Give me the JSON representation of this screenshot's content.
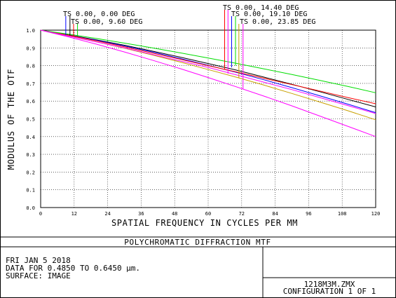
{
  "chart_data": {
    "type": "line",
    "title": "POLYCHROMATIC DIFFRACTION MTF",
    "xlabel": "SPATIAL FREQUENCY IN CYCLES PER MM",
    "ylabel": "MODULUS OF THE OTF",
    "xlim": [
      0,
      120
    ],
    "ylim": [
      0,
      1.0
    ],
    "xticks": [
      "0",
      "12",
      "24",
      "36",
      "48",
      "60",
      "72",
      "84",
      "96",
      "108",
      "120"
    ],
    "yticks": [
      "0.0",
      "0.1",
      "0.2",
      "0.3",
      "0.4",
      "0.5",
      "0.6",
      "0.7",
      "0.8",
      "0.9",
      "1.0"
    ],
    "grid": true,
    "legend": [
      "TS 0.00, 0.00 DEG",
      "TS 0.00, 9.60 DEG",
      "TS 0.00, 14.40 DEG",
      "TS 0.00, 19.10 DEG",
      "TS 0.00, 23.85 DEG"
    ],
    "series": [
      {
        "color": "#000000",
        "x": [
          0,
          10,
          20,
          30,
          40,
          50,
          60,
          70,
          80,
          90,
          100,
          110,
          120
        ],
        "y": [
          1.0,
          0.973,
          0.945,
          0.915,
          0.882,
          0.848,
          0.812,
          0.775,
          0.735,
          0.695,
          0.653,
          0.61,
          0.567
        ]
      },
      {
        "color": "#0000ff",
        "x": [
          0,
          10,
          20,
          30,
          40,
          50,
          60,
          70,
          80,
          90,
          100,
          110,
          120
        ],
        "y": [
          1.0,
          0.972,
          0.943,
          0.911,
          0.877,
          0.84,
          0.802,
          0.762,
          0.72,
          0.676,
          0.63,
          0.583,
          0.535
        ]
      },
      {
        "color": "#ff0000",
        "x": [
          0,
          10,
          20,
          30,
          40,
          50,
          60,
          70,
          80,
          90,
          100,
          110,
          120
        ],
        "y": [
          1.0,
          0.971,
          0.94,
          0.906,
          0.871,
          0.836,
          0.8,
          0.765,
          0.729,
          0.693,
          0.657,
          0.62,
          0.585
        ]
      },
      {
        "color": "#00dd00",
        "x": [
          0,
          10,
          20,
          30,
          40,
          50,
          60,
          70,
          80,
          90,
          100,
          110,
          120
        ],
        "y": [
          1.0,
          0.977,
          0.953,
          0.927,
          0.9,
          0.872,
          0.843,
          0.813,
          0.782,
          0.75,
          0.717,
          0.683,
          0.647
        ]
      },
      {
        "color": "#c8a000",
        "x": [
          0,
          10,
          20,
          30,
          40,
          50,
          60,
          70,
          80,
          90,
          100,
          110,
          120
        ],
        "y": [
          1.0,
          0.968,
          0.934,
          0.898,
          0.86,
          0.82,
          0.778,
          0.735,
          0.69,
          0.643,
          0.595,
          0.546,
          0.495
        ]
      },
      {
        "color": "#ff00ff",
        "x": [
          0,
          10,
          20,
          30,
          40,
          50,
          60,
          70,
          80,
          90,
          100,
          110,
          120
        ],
        "y": [
          1.0,
          0.962,
          0.921,
          0.877,
          0.831,
          0.783,
          0.733,
          0.681,
          0.628,
          0.573,
          0.516,
          0.458,
          0.4
        ]
      },
      {
        "color": "#ff00ff",
        "x": [
          0,
          30,
          60,
          90,
          120
        ],
        "y": [
          1.0,
          0.9,
          0.79,
          0.665,
          0.53
        ]
      }
    ],
    "markers": [
      {
        "color": "#0000ff",
        "x": 9.0,
        "y_bottom": 0.972,
        "label": 0
      },
      {
        "color": "#000000",
        "x": 10.5,
        "y_bottom": 0.97,
        "label": 0
      },
      {
        "color": "#ff0000",
        "x": 11.8,
        "y_bottom": 0.965,
        "label": 1
      },
      {
        "color": "#00dd00",
        "x": 13.2,
        "y_bottom": 0.966,
        "label": 1
      },
      {
        "color": "#ff0000",
        "x": 65.9,
        "y_bottom": 0.78,
        "label": 2
      },
      {
        "color": "#ff00ff",
        "x": 67.1,
        "y_bottom": 0.755,
        "label": 2
      },
      {
        "color": "#0000ff",
        "x": 68.4,
        "y_bottom": 0.79,
        "label": 3
      },
      {
        "color": "#00dd00",
        "x": 69.8,
        "y_bottom": 0.8,
        "label": 3
      },
      {
        "color": "#c8a000",
        "x": 71.0,
        "y_bottom": 0.73,
        "label": 4
      },
      {
        "color": "#ff00ff",
        "x": 72.5,
        "y_bottom": 0.67,
        "label": 4
      }
    ]
  },
  "info": {
    "date": "FRI JAN 5 2018",
    "data_range": "DATA FOR 0.4850 TO 0.6450 µm.",
    "surface": "SURFACE: IMAGE",
    "file": "1218M3M.ZMX",
    "configuration": "CONFIGURATION  1 OF  1"
  }
}
